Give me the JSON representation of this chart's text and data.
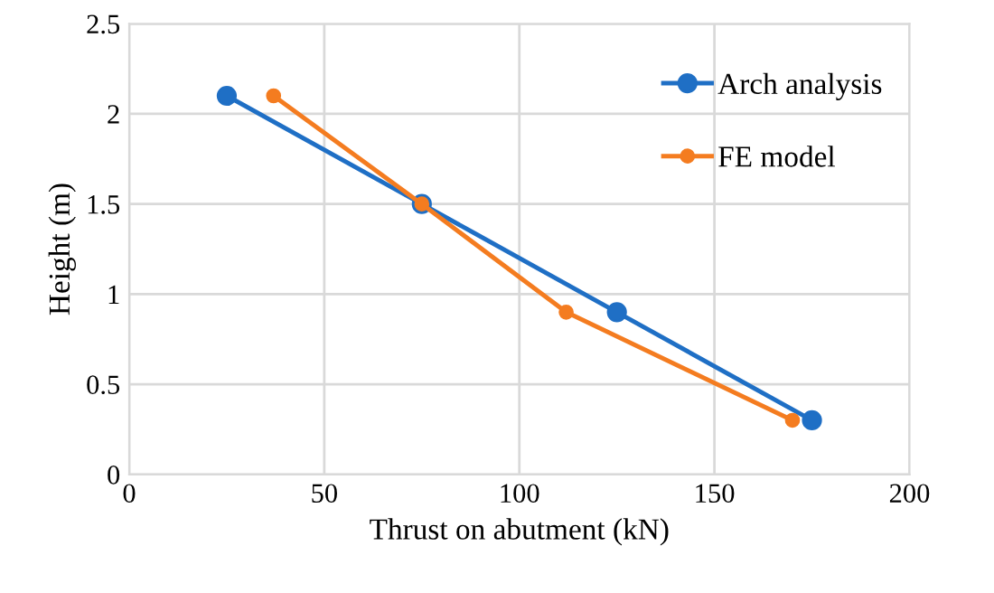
{
  "chart_data": {
    "type": "line",
    "xlabel": "Thrust on abutment (kN)",
    "ylabel": "Height (m)",
    "xlim": [
      0,
      200
    ],
    "xticks": [
      0,
      50,
      100,
      150,
      200
    ],
    "ylim": [
      0,
      2.5
    ],
    "yticks": [
      0,
      0.5,
      1,
      1.5,
      2,
      2.5
    ],
    "grid": true,
    "legend": "right",
    "marker": "circle",
    "line_style": "solid",
    "series": [
      {
        "name": "Arch analysis",
        "color": "#1f6fc5",
        "x": [
          25,
          75,
          125,
          175
        ],
        "values": [
          2.1,
          1.5,
          0.9,
          0.3
        ]
      },
      {
        "name": "FE model",
        "color": "#f47c20",
        "x": [
          37,
          75,
          112,
          170
        ],
        "values": [
          2.1,
          1.5,
          0.9,
          0.3
        ]
      }
    ]
  }
}
